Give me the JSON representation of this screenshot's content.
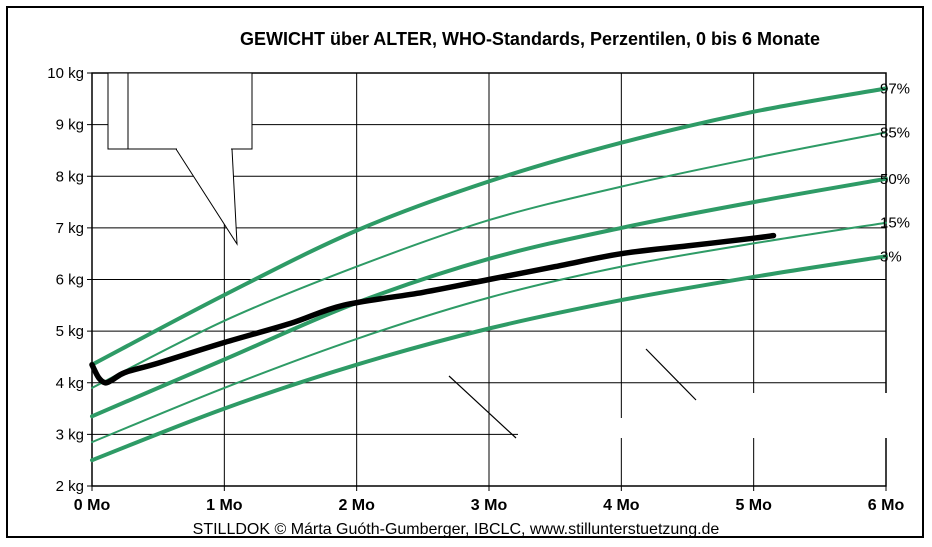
{
  "chart_data": {
    "type": "line",
    "title_parts": [
      {
        "text": "GEWICHT",
        "color": "#e8101a"
      },
      {
        "text": " über ALTER, WHO-Standards, Perzentilen, 0 bis ",
        "color": "#000000"
      },
      {
        "text": "6 Monate",
        "color": "#e8101a"
      }
    ],
    "xlim": [
      0,
      6
    ],
    "ylim": [
      2,
      10
    ],
    "x_ticks": [
      {
        "value": 0,
        "label": "0 Mo"
      },
      {
        "value": 1,
        "label": "1 Mo"
      },
      {
        "value": 2,
        "label": "2 Mo"
      },
      {
        "value": 3,
        "label": "3 Mo"
      },
      {
        "value": 4,
        "label": "4 Mo"
      },
      {
        "value": 5,
        "label": "5 Mo"
      },
      {
        "value": 6,
        "label": "6 Mo"
      }
    ],
    "y_ticks": [
      {
        "value": 2,
        "label": "2 kg"
      },
      {
        "value": 3,
        "label": "3 kg"
      },
      {
        "value": 4,
        "label": "4 kg"
      },
      {
        "value": 5,
        "label": "5 kg"
      },
      {
        "value": 6,
        "label": "6 kg"
      },
      {
        "value": 7,
        "label": "7 kg"
      },
      {
        "value": 8,
        "label": "8 kg"
      },
      {
        "value": 9,
        "label": "9 kg"
      },
      {
        "value": 10,
        "label": "10 kg"
      }
    ],
    "grid": true,
    "series": [
      {
        "name": "97%",
        "color": "#2e9b66",
        "weight": "thick",
        "x": [
          0,
          1,
          2,
          3,
          4,
          5,
          6
        ],
        "y": [
          4.35,
          5.7,
          6.95,
          7.9,
          8.65,
          9.25,
          9.7
        ]
      },
      {
        "name": "85%",
        "color": "#2e9b66",
        "weight": "thin",
        "x": [
          0,
          1,
          2,
          3,
          4,
          5,
          6
        ],
        "y": [
          3.9,
          5.2,
          6.25,
          7.15,
          7.8,
          8.35,
          8.85
        ]
      },
      {
        "name": "50%",
        "color": "#2e9b66",
        "weight": "thick",
        "x": [
          0,
          1,
          2,
          3,
          4,
          5,
          6
        ],
        "y": [
          3.35,
          4.45,
          5.55,
          6.4,
          7.0,
          7.5,
          7.95
        ]
      },
      {
        "name": "15%",
        "color": "#2e9b66",
        "weight": "thin",
        "x": [
          0,
          1,
          2,
          3,
          4,
          5,
          6
        ],
        "y": [
          2.85,
          3.9,
          4.85,
          5.65,
          6.25,
          6.7,
          7.1
        ]
      },
      {
        "name": "3%",
        "color": "#2e9b66",
        "weight": "thick",
        "x": [
          0,
          1,
          2,
          3,
          4,
          5,
          6
        ],
        "y": [
          2.5,
          3.5,
          4.35,
          5.05,
          5.6,
          6.05,
          6.45
        ]
      },
      {
        "name": "",
        "color": "#000000",
        "weight": "child",
        "x": [
          0,
          0.05,
          0.1,
          0.15,
          0.25,
          0.5,
          1,
          1.5,
          1.9,
          2.5,
          3,
          3.5,
          4,
          4.5,
          5,
          5.15
        ],
        "y": [
          4.35,
          4.1,
          4.0,
          4.05,
          4.2,
          4.38,
          4.78,
          5.15,
          5.5,
          5.75,
          6.0,
          6.25,
          6.5,
          6.65,
          6.8,
          6.85
        ]
      }
    ],
    "percentile_labels": [
      "97%",
      "85%",
      "50%",
      "15%",
      "3%"
    ],
    "credit": "STILLDOK © Márta Guóth-Gumberger, IBCLC, www.stillunterstuetzung.de"
  }
}
